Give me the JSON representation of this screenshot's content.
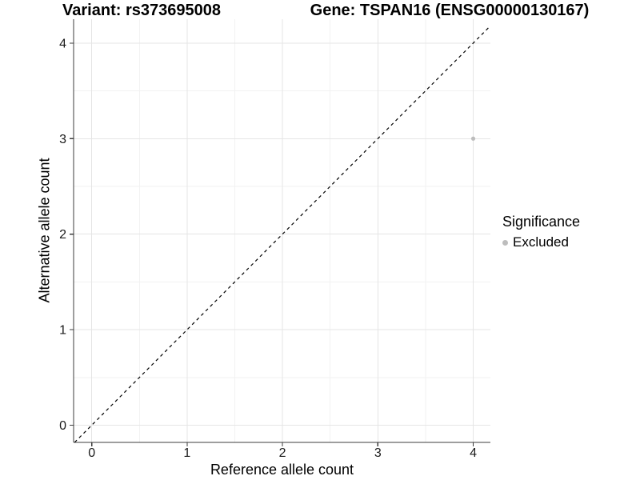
{
  "titles": {
    "variant": "Variant: rs373695008",
    "gene": "Gene: TSPAN16 (ENSG00000130167)"
  },
  "chart_data": {
    "type": "scatter",
    "title_left": "Variant: rs373695008",
    "title_right": "Gene: TSPAN16 (ENSG00000130167)",
    "xlabel": "Reference allele count",
    "ylabel": "Alternative allele count",
    "xlim": [
      -0.19,
      4.18
    ],
    "ylim": [
      -0.18,
      4.25
    ],
    "x_ticks": [
      0,
      1,
      2,
      3,
      4
    ],
    "y_ticks": [
      0,
      1,
      2,
      3,
      4
    ],
    "x_minor_ticks": [
      0.5,
      1.5,
      2.5,
      3.5
    ],
    "y_minor_ticks": [
      0.5,
      1.5,
      2.5,
      3.5
    ],
    "grid": "major+minor",
    "legend_position": "right",
    "reference_line": {
      "kind": "identity",
      "style": "dashed",
      "color": "#000000"
    },
    "series": [
      {
        "name": "Excluded",
        "color": "#BDBDBD",
        "points": [
          [
            4,
            3
          ]
        ]
      }
    ]
  },
  "legend": {
    "title": "Significance",
    "items": [
      {
        "label": "Excluded",
        "color": "#BDBDBD",
        "marker": "circle"
      }
    ]
  },
  "colors": {
    "background": "#FFFFFF",
    "grid_major": "#E5E5E5",
    "grid_minor": "#F2F2F2",
    "axis_line": "#3C3C3C",
    "tick_text": "#1A1A1A",
    "title_text": "#000000",
    "point": "#BDBDBD"
  }
}
